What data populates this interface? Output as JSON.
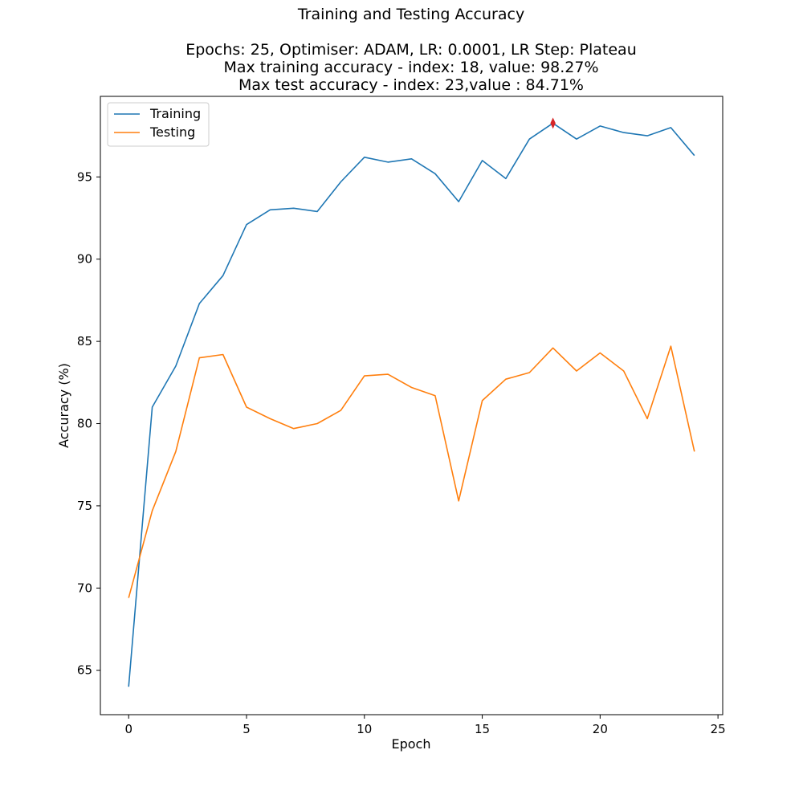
{
  "chart_data": {
    "type": "line",
    "title": "Training and Testing Accuracy",
    "subtitle_lines": [
      "Epochs: 25, Optimiser: ADAM, LR: 0.0001, LR Step: Plateau",
      "Max training accuracy - index: 18, value: 98.27%",
      "Max test accuracy - index: 23,value : 84.71%"
    ],
    "xlabel": "Epoch",
    "ylabel": "Accuracy (%)",
    "xlim": [
      -1.2,
      25.2
    ],
    "ylim": [
      62.3,
      99.9
    ],
    "xticks": [
      0,
      5,
      10,
      15,
      20,
      25
    ],
    "yticks": [
      65,
      70,
      75,
      80,
      85,
      90,
      95
    ],
    "x": [
      0,
      1,
      2,
      3,
      4,
      5,
      6,
      7,
      8,
      9,
      10,
      11,
      12,
      13,
      14,
      15,
      16,
      17,
      18,
      19,
      20,
      21,
      22,
      23,
      24
    ],
    "series": [
      {
        "name": "Training",
        "color": "#1f77b4",
        "values": [
          64.0,
          81.0,
          83.5,
          87.3,
          89.0,
          92.1,
          93.0,
          93.1,
          92.9,
          94.7,
          96.2,
          95.9,
          96.1,
          95.2,
          93.5,
          96.0,
          94.9,
          97.3,
          98.27,
          97.3,
          98.1,
          97.7,
          97.5,
          98.0,
          96.3
        ]
      },
      {
        "name": "Testing",
        "color": "#ff7f0e",
        "values": [
          69.4,
          74.7,
          78.3,
          84.0,
          84.2,
          81.0,
          80.3,
          79.7,
          80.0,
          80.8,
          82.9,
          83.0,
          82.2,
          81.7,
          75.3,
          81.4,
          82.7,
          83.1,
          84.6,
          83.2,
          84.3,
          83.2,
          80.3,
          84.71,
          78.3
        ]
      }
    ],
    "marker": {
      "x": 18,
      "y": 98.27,
      "color": "#d62728",
      "symbol": "thin-diamond"
    },
    "legend_position": "top-left",
    "grid": false
  }
}
